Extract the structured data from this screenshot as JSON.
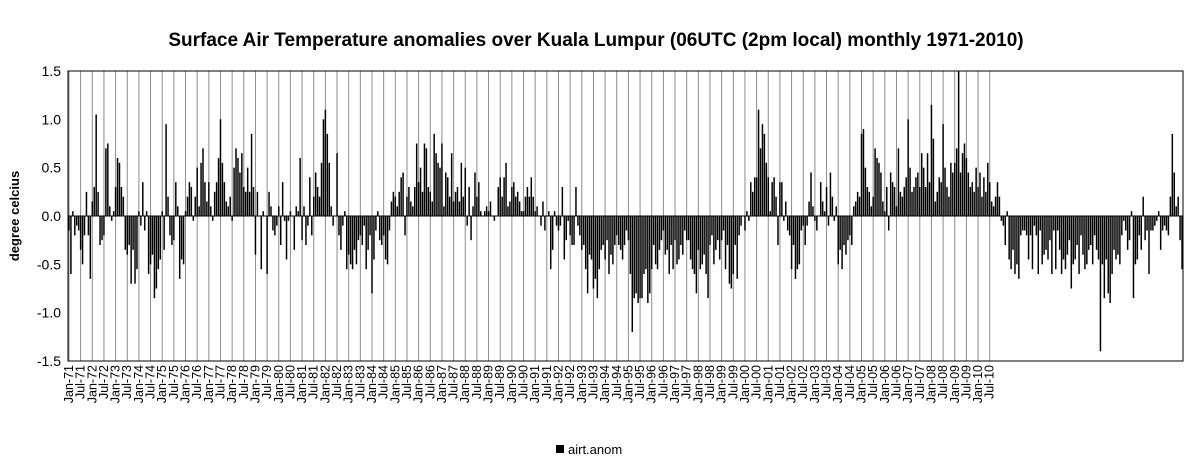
{
  "chart_data": {
    "type": "bar",
    "title": "Surface Air Temperature anomalies over Kuala Lumpur (06UTC (2pm local) monthly 1971-2010)",
    "xlabel": "",
    "ylabel": "degree celcius",
    "ylim": [
      -1.5,
      1.5
    ],
    "yticks": [
      "1.5",
      "1.0",
      "0.5",
      "0.0",
      "-0.5",
      "-1.0",
      "-1.5"
    ],
    "ytick_values": [
      1.5,
      1.0,
      0.5,
      0.0,
      -0.5,
      -1.0,
      -1.5
    ],
    "grid": "vertical gridlines at every tick label",
    "legend": "bottom-center",
    "bar_color": "#000000",
    "x_tick_labels": [
      "Jan-71",
      "Jul-71",
      "Jan-72",
      "Jul-72",
      "Jan-73",
      "Jul-73",
      "Jan-74",
      "Jul-74",
      "Jan-75",
      "Jul-75",
      "Jan-76",
      "Jul-76",
      "Jan-77",
      "Jul-77",
      "Jan-78",
      "Jul-78",
      "Jan-79",
      "Jul-79",
      "Jan-80",
      "Jul-80",
      "Jan-81",
      "Jul-81",
      "Jan-82",
      "Jul-82",
      "Jan-83",
      "Jul-83",
      "Jan-84",
      "Jul-84",
      "Jan-85",
      "Jul-85",
      "Jan-86",
      "Jul-86",
      "Jan-87",
      "Jul-87",
      "Jan-88",
      "Jul-88",
      "Jan-89",
      "Jul-89",
      "Jan-90",
      "Jul-90",
      "Jan-91",
      "Jul-91",
      "Jan-92",
      "Jul-92",
      "Jan-93",
      "Jul-93",
      "Jan-94",
      "Jul-94",
      "Jan-95",
      "Jul-95",
      "Jan-96",
      "Jul-96",
      "Jan-97",
      "Jul-97",
      "Jan-98",
      "Jul-98",
      "Jan-99",
      "Jul-99",
      "Jan-00",
      "Jul-00",
      "Jan-01",
      "Jul-01",
      "Jan-02",
      "Jul-02",
      "Jan-03",
      "Jul-03",
      "Jan-04",
      "Jul-04",
      "Jan-05",
      "Jul-05",
      "Jan-06",
      "Jul-06",
      "Jan-07",
      "Jul-07",
      "Jan-08",
      "Jul-08",
      "Jan-09",
      "Jul-09",
      "Jan-10",
      "Jul-10"
    ],
    "series": [
      {
        "name": "airt.anom",
        "values": [
          -0.15,
          -0.6,
          0.05,
          -0.2,
          -0.1,
          -0.15,
          -0.35,
          -0.5,
          -0.2,
          0.25,
          -0.2,
          -0.65,
          0.15,
          0.3,
          1.05,
          0.25,
          -0.3,
          -0.25,
          -0.2,
          0.7,
          0.75,
          0.1,
          -0.05,
          0.05,
          0.3,
          0.6,
          0.55,
          0.3,
          0.2,
          -0.35,
          -0.4,
          -0.3,
          -0.7,
          -0.35,
          -0.7,
          -0.55,
          0.05,
          -0.1,
          0.35,
          -0.15,
          0.05,
          -0.6,
          -0.5,
          -0.4,
          -0.85,
          -0.75,
          -0.55,
          -0.45,
          0.05,
          -0.35,
          0.95,
          0.2,
          -0.2,
          -0.3,
          -0.25,
          0.35,
          0.1,
          -0.65,
          -0.45,
          -0.5,
          0.05,
          0.2,
          0.35,
          0.3,
          -0.05,
          0.2,
          0.5,
          0.1,
          0.55,
          0.7,
          0.35,
          0.15,
          0.35,
          0.1,
          -0.05,
          0.25,
          0.35,
          0.6,
          1.0,
          0.55,
          0.35,
          0.15,
          0.1,
          0.2,
          -0.05,
          0.5,
          0.7,
          0.6,
          0.45,
          0.65,
          0.3,
          0.25,
          0.5,
          0.25,
          0.85,
          0.3,
          -0.4,
          0.25,
          0.0,
          -0.55,
          0.05,
          0.0,
          -0.6,
          0.25,
          0.1,
          -0.15,
          -0.2,
          -0.1,
          0.1,
          -0.3,
          0.35,
          -0.05,
          -0.45,
          -0.05,
          0.05,
          0.0,
          -0.35,
          0.1,
          0.05,
          0.6,
          -0.25,
          0.1,
          -0.3,
          -0.1,
          0.4,
          -0.2,
          0.2,
          0.45,
          0.3,
          0.2,
          0.55,
          1.0,
          1.1,
          0.85,
          0.55,
          0.1,
          -0.1,
          0.0,
          0.65,
          -0.2,
          -0.35,
          -0.1,
          0.05,
          -0.55,
          -0.4,
          -0.5,
          -0.55,
          -0.35,
          -0.5,
          -0.25,
          -0.2,
          -0.3,
          -0.1,
          -0.55,
          -0.35,
          -0.2,
          -0.8,
          -0.45,
          -0.15,
          0.05,
          -0.25,
          -0.3,
          -0.2,
          -0.45,
          -0.5,
          -0.15,
          0.15,
          0.25,
          0.2,
          0.1,
          0.25,
          0.4,
          0.45,
          -0.2,
          0.2,
          0.3,
          0.15,
          0.1,
          0.3,
          0.75,
          0.35,
          0.5,
          0.25,
          0.75,
          0.7,
          0.3,
          0.25,
          0.15,
          0.85,
          0.65,
          0.55,
          0.5,
          0.75,
          0.1,
          0.45,
          0.4,
          0.2,
          0.65,
          0.15,
          0.25,
          0.3,
          0.15,
          0.55,
          0.2,
          0.5,
          -0.1,
          0.3,
          -0.25,
          0.1,
          0.45,
          0.2,
          0.35,
          0.05,
          0.0,
          0.05,
          0.1,
          0.05,
          0.15,
          0.0,
          -0.05,
          0.0,
          0.3,
          0.4,
          0.2,
          0.4,
          0.55,
          0.1,
          0.15,
          0.3,
          0.35,
          0.2,
          0.25,
          0.15,
          0.05,
          0.05,
          0.2,
          0.3,
          0.2,
          0.4,
          0.2,
          0.05,
          0.1,
          0.0,
          -0.1,
          0.15,
          -0.15,
          0.0,
          0.05,
          -0.55,
          -0.35,
          0.05,
          -0.1,
          -0.15,
          -0.1,
          0.3,
          -0.45,
          -0.25,
          -0.05,
          -0.2,
          -0.3,
          -0.3,
          0.3,
          -0.1,
          -0.2,
          -0.35,
          -0.3,
          -0.55,
          -0.8,
          -0.4,
          -0.45,
          -0.75,
          -0.65,
          -0.85,
          -0.55,
          -0.35,
          -0.3,
          -0.45,
          -0.25,
          -0.6,
          -0.4,
          -0.5,
          -0.3,
          -0.2,
          -0.3,
          -0.35,
          -0.45,
          -0.3,
          -0.15,
          -0.25,
          -0.6,
          -1.2,
          -0.85,
          -0.8,
          -0.9,
          -0.85,
          -0.85,
          -0.6,
          -0.55,
          -0.9,
          -0.8,
          -0.55,
          -0.3,
          -0.5,
          -0.55,
          -0.35,
          -0.25,
          -0.15,
          -0.4,
          -0.35,
          -0.6,
          -0.3,
          -0.55,
          -0.25,
          -0.5,
          -0.45,
          -0.3,
          -0.4,
          -0.15,
          -0.25,
          -0.25,
          -0.45,
          -0.55,
          -0.6,
          -0.8,
          -0.35,
          -0.55,
          -0.5,
          -0.4,
          -0.6,
          -0.85,
          -0.3,
          -0.2,
          -0.5,
          -0.35,
          -0.25,
          -0.45,
          -0.25,
          -0.15,
          -0.55,
          -0.3,
          -0.7,
          -0.75,
          -0.6,
          -0.3,
          -0.65,
          -0.2,
          -0.1,
          0.0,
          -0.15,
          0.05,
          -0.05,
          0.35,
          0.25,
          0.4,
          0.4,
          1.1,
          0.7,
          0.95,
          0.85,
          0.55,
          0.4,
          0.05,
          0.35,
          0.4,
          0.2,
          -0.3,
          0.35,
          0.35,
          -0.05,
          0.15,
          -0.15,
          -0.2,
          -0.55,
          -0.3,
          -0.65,
          -0.55,
          -0.5,
          -0.15,
          -0.1,
          -0.3,
          -0.1,
          0.15,
          0.45,
          0.1,
          -0.05,
          -0.15,
          0.0,
          0.35,
          0.15,
          0.05,
          0.3,
          -0.1,
          0.45,
          0.2,
          -0.05,
          0.1,
          -0.5,
          -0.35,
          -0.55,
          -0.3,
          -0.4,
          -0.25,
          -0.2,
          -0.3,
          0.1,
          0.15,
          0.25,
          0.2,
          0.85,
          0.9,
          0.5,
          0.3,
          0.25,
          0.1,
          0.2,
          0.7,
          0.6,
          0.55,
          0.45,
          0.15,
          0.05,
          0.3,
          -0.15,
          0.45,
          0.35,
          0.3,
          0.1,
          0.7,
          0.25,
          0.2,
          0.3,
          0.4,
          1.0,
          0.5,
          0.25,
          0.3,
          0.4,
          0.45,
          0.3,
          0.65,
          0.5,
          0.3,
          0.65,
          0.35,
          1.15,
          0.8,
          0.15,
          0.25,
          0.4,
          0.35,
          0.95,
          0.5,
          0.3,
          0.2,
          0.55,
          0.45,
          0.55,
          0.7,
          1.5,
          0.45,
          0.65,
          0.75,
          0.6,
          0.45,
          0.3,
          0.35,
          0.25,
          0.5,
          0.3,
          0.45,
          0.2,
          0.4,
          0.25,
          0.55,
          0.35,
          0.15,
          0.1,
          0.2,
          0.35,
          0.2,
          -0.05,
          -0.1,
          -0.3,
          0.05,
          -0.45,
          -0.55,
          -0.35,
          -0.6,
          -0.5,
          -0.65,
          -0.2,
          -0.15,
          -0.15,
          -0.2,
          -0.45,
          -0.2,
          -0.55,
          -0.1,
          -0.2,
          -0.6,
          -0.15,
          -0.5,
          -0.4,
          -0.35,
          -0.45,
          -0.25,
          -0.6,
          -0.15,
          -0.55,
          -0.15,
          -0.35,
          -0.6,
          -0.45,
          -0.55,
          -0.4,
          -0.25,
          -0.75,
          -0.5,
          -0.45,
          -0.3,
          -0.6,
          -0.2,
          -0.4,
          -0.55,
          -0.5,
          -0.35,
          -0.3,
          -0.5,
          -0.2,
          -0.35,
          -0.45,
          -1.4,
          -0.5,
          -0.85,
          -0.45,
          -0.8,
          -0.9,
          -0.6,
          -0.35,
          -0.45,
          -0.4,
          -0.5,
          -0.2,
          -0.05,
          -0.15,
          -0.35,
          -0.25,
          0.05,
          -0.85,
          -0.5,
          -0.45,
          -0.2,
          -0.35,
          0.2,
          -0.25,
          -0.15,
          -0.6,
          -0.15,
          -0.15,
          -0.1,
          -0.05,
          0.05,
          -0.35,
          -0.15,
          -0.1,
          -0.15,
          -0.2,
          0.2,
          0.85,
          0.45,
          0.1,
          0.2,
          -0.25,
          -0.55
        ]
      }
    ]
  }
}
